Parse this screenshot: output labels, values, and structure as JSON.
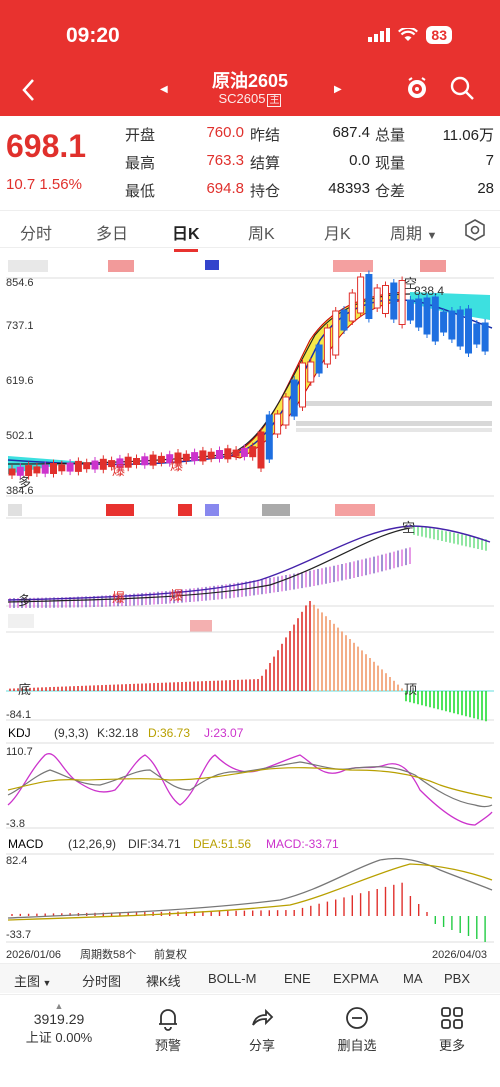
{
  "status": {
    "time": "09:20",
    "battery": "83"
  },
  "nav": {
    "title": "原油2605",
    "code": "SC2605",
    "code_tag": "主"
  },
  "quote": {
    "price": "698.1",
    "change": "10.7",
    "change_pct": "1.56%",
    "open_label": "开盘",
    "open": "760.0",
    "prev_label": "昨结",
    "prev": "687.4",
    "vol_label": "总量",
    "vol": "11.06万",
    "high_label": "最高",
    "high": "763.3",
    "settle_label": "结算",
    "settle": "0.0",
    "cur_label": "现量",
    "cur": "7",
    "low_label": "最低",
    "low": "694.8",
    "oi_label": "持仓",
    "oi": "48393",
    "diff_label": "仓差",
    "diff": "28"
  },
  "tabs": [
    "分时",
    "多日",
    "日K",
    "周K",
    "月K",
    "周期"
  ],
  "main_axis": [
    "854.6",
    "737.1",
    "619.6",
    "502.1",
    "384.6"
  ],
  "main_marks": {
    "high_price": "838.4",
    "kong": "空",
    "duo": "多",
    "bao": "爆"
  },
  "osc_marks": {
    "kong": "空",
    "duo": "多",
    "bao": "爆"
  },
  "pan3": {
    "bottom_label": "-84.1",
    "di": "底",
    "ding": "顶"
  },
  "kdj": {
    "name": "KDJ",
    "params": "(9,3,3)",
    "k": "K:32.18",
    "d": "D:36.73",
    "j": "J:23.07",
    "top": "110.7",
    "bottom": "-3.8"
  },
  "macd": {
    "name": "MACD",
    "params": "(12,26,9)",
    "dif": "DIF:34.71",
    "dea": "DEA:51.56",
    "macd": "MACD:-33.71",
    "top": "82.4",
    "bottom": "-33.7"
  },
  "date_bar": {
    "start": "2026/01/06",
    "count": "周期数58个",
    "adj": "前复权",
    "end": "2026/04/03"
  },
  "bottom_tabs": [
    "主图",
    "分时图",
    "裸K线",
    "BOLL-M",
    "ENE",
    "EXPMA",
    "MA",
    "PBX"
  ],
  "footer": {
    "index_val": "3919.29",
    "index_name": "上证",
    "index_pct": "0.00%",
    "items": [
      "预警",
      "分享",
      "删自选",
      "更多"
    ]
  },
  "colors": {
    "brand": "#e8322f",
    "up": "#e0302c",
    "down": "#1e90ff",
    "yellow_band": "#f5e94a",
    "cyan_band": "#3de0e0"
  }
}
